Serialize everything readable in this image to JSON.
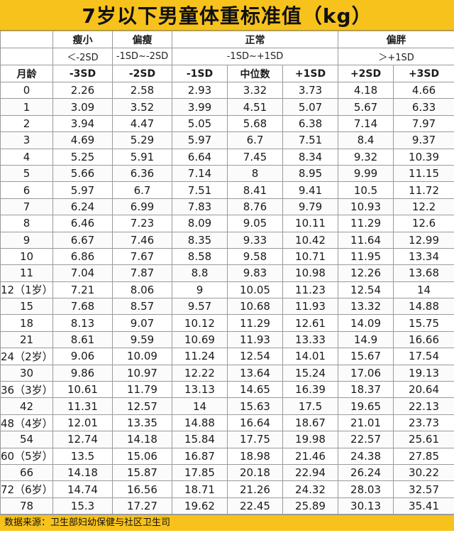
{
  "title": "7岁以下男童体重标准值（kg）",
  "header": {
    "groups": [
      "瘦小",
      "偏瘦",
      "正常",
      "偏胖"
    ],
    "ranges": [
      "＜-2SD",
      "-1SD~-2SD",
      "-1SD~+1SD",
      "＞+1SD"
    ],
    "columns": [
      "月龄",
      "-3SD",
      "-2SD",
      "-1SD",
      "中位数",
      "+1SD",
      "+2SD",
      "+3SD"
    ]
  },
  "rows": [
    [
      "0",
      "2.26",
      "2.58",
      "2.93",
      "3.32",
      "3.73",
      "4.18",
      "4.66"
    ],
    [
      "1",
      "3.09",
      "3.52",
      "3.99",
      "4.51",
      "5.07",
      "5.67",
      "6.33"
    ],
    [
      "2",
      "3.94",
      "4.47",
      "5.05",
      "5.68",
      "6.38",
      "7.14",
      "7.97"
    ],
    [
      "3",
      "4.69",
      "5.29",
      "5.97",
      "6.7",
      "7.51",
      "8.4",
      "9.37"
    ],
    [
      "4",
      "5.25",
      "5.91",
      "6.64",
      "7.45",
      "8.34",
      "9.32",
      "10.39"
    ],
    [
      "5",
      "5.66",
      "6.36",
      "7.14",
      "8",
      "8.95",
      "9.99",
      "11.15"
    ],
    [
      "6",
      "5.97",
      "6.7",
      "7.51",
      "8.41",
      "9.41",
      "10.5",
      "11.72"
    ],
    [
      "7",
      "6.24",
      "6.99",
      "7.83",
      "8.76",
      "9.79",
      "10.93",
      "12.2"
    ],
    [
      "8",
      "6.46",
      "7.23",
      "8.09",
      "9.05",
      "10.11",
      "11.29",
      "12.6"
    ],
    [
      "9",
      "6.67",
      "7.46",
      "8.35",
      "9.33",
      "10.42",
      "11.64",
      "12.99"
    ],
    [
      "10",
      "6.86",
      "7.67",
      "8.58",
      "9.58",
      "10.71",
      "11.95",
      "13.34"
    ],
    [
      "11",
      "7.04",
      "7.87",
      "8.8",
      "9.83",
      "10.98",
      "12.26",
      "13.68"
    ],
    [
      "12（1岁）",
      "7.21",
      "8.06",
      "9",
      "10.05",
      "11.23",
      "12.54",
      "14"
    ],
    [
      "15",
      "7.68",
      "8.57",
      "9.57",
      "10.68",
      "11.93",
      "13.32",
      "14.88"
    ],
    [
      "18",
      "8.13",
      "9.07",
      "10.12",
      "11.29",
      "12.61",
      "14.09",
      "15.75"
    ],
    [
      "21",
      "8.61",
      "9.59",
      "10.69",
      "11.93",
      "13.33",
      "14.9",
      "16.66"
    ],
    [
      "24（2岁）",
      "9.06",
      "10.09",
      "11.24",
      "12.54",
      "14.01",
      "15.67",
      "17.54"
    ],
    [
      "30",
      "9.86",
      "10.97",
      "12.22",
      "13.64",
      "15.24",
      "17.06",
      "19.13"
    ],
    [
      "36（3岁）",
      "10.61",
      "11.79",
      "13.13",
      "14.65",
      "16.39",
      "18.37",
      "20.64"
    ],
    [
      "42",
      "11.31",
      "12.57",
      "14",
      "15.63",
      "17.5",
      "19.65",
      "22.13"
    ],
    [
      "48（4岁）",
      "12.01",
      "13.35",
      "14.88",
      "16.64",
      "18.67",
      "21.01",
      "23.73"
    ],
    [
      "54",
      "12.74",
      "14.18",
      "15.84",
      "17.75",
      "19.98",
      "22.57",
      "25.61"
    ],
    [
      "60（5岁）",
      "13.5",
      "15.06",
      "16.87",
      "18.98",
      "21.46",
      "24.38",
      "27.85"
    ],
    [
      "66",
      "14.18",
      "15.87",
      "17.85",
      "20.18",
      "22.94",
      "26.24",
      "30.22"
    ],
    [
      "72（6岁）",
      "14.74",
      "16.56",
      "18.71",
      "21.26",
      "24.32",
      "28.03",
      "32.57"
    ],
    [
      "78",
      "15.3",
      "17.27",
      "19.62",
      "22.45",
      "25.89",
      "30.13",
      "35.41"
    ]
  ],
  "footer": "数据来源：卫生部妇幼保健与社区卫生司",
  "colors": {
    "title_bg": "#f7c21c",
    "footer_bg": "#f7c21c",
    "grid": "#9a9a9a"
  }
}
